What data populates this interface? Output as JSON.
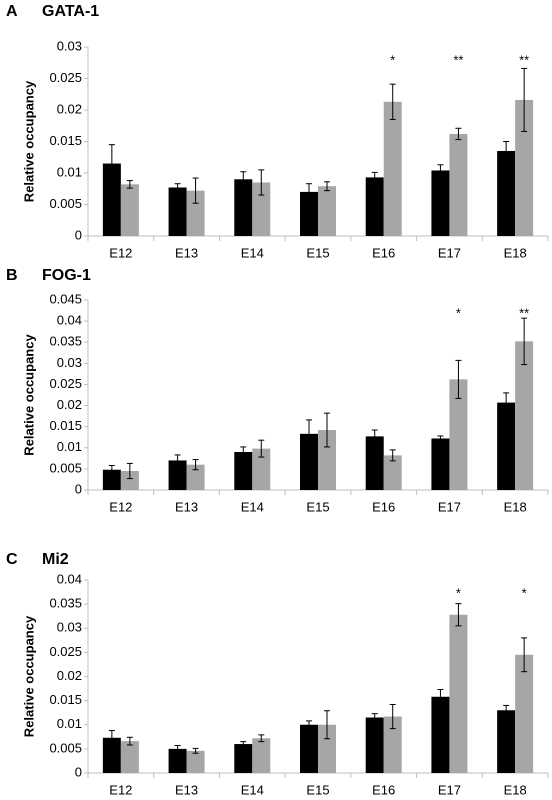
{
  "chart_data": [
    {
      "type": "bar",
      "label": "A",
      "title": "GATA-1",
      "y_label": "Relative occupancy",
      "categories": [
        "E12",
        "E13",
        "E14",
        "E15",
        "E16",
        "E17",
        "E18"
      ],
      "series": [
        {
          "color": "#000000",
          "values": [
            0.0115,
            0.0077,
            0.009,
            0.007,
            0.0093,
            0.0104,
            0.0135
          ],
          "errors": [
            0.003,
            0.0006,
            0.0012,
            0.0013,
            0.0008,
            0.0009,
            0.0015
          ]
        },
        {
          "color": "#a6a6a6",
          "values": [
            0.0082,
            0.0072,
            0.0085,
            0.0079,
            0.0213,
            0.0162,
            0.0216
          ],
          "errors": [
            0.0006,
            0.002,
            0.002,
            0.0007,
            0.0028,
            0.0009,
            0.005
          ],
          "markers": [
            null,
            null,
            null,
            null,
            "*",
            "**",
            "**"
          ]
        }
      ],
      "ylim": [
        0,
        0.03
      ],
      "yticks": [
        0,
        0.005,
        0.01,
        0.015,
        0.02,
        0.025,
        0.03
      ]
    },
    {
      "type": "bar",
      "label": "B",
      "title": "FOG-1",
      "y_label": "Relative occupancy",
      "categories": [
        "E12",
        "E13",
        "E14",
        "E15",
        "E16",
        "E17",
        "E18"
      ],
      "series": [
        {
          "color": "#000000",
          "values": [
            0.0048,
            0.007,
            0.009,
            0.0133,
            0.0127,
            0.0122,
            0.0207
          ],
          "errors": [
            0.001,
            0.0013,
            0.0012,
            0.0033,
            0.0015,
            0.0006,
            0.0023
          ]
        },
        {
          "color": "#a6a6a6",
          "values": [
            0.0045,
            0.006,
            0.0098,
            0.0142,
            0.0082,
            0.0262,
            0.0352
          ],
          "errors": [
            0.0018,
            0.0012,
            0.002,
            0.004,
            0.0013,
            0.0045,
            0.0055
          ],
          "markers": [
            null,
            null,
            null,
            null,
            null,
            "*",
            "**"
          ]
        }
      ],
      "ylim": [
        0,
        0.045
      ],
      "yticks": [
        0,
        0.005,
        0.01,
        0.015,
        0.02,
        0.025,
        0.03,
        0.035,
        0.04,
        0.045
      ]
    },
    {
      "type": "bar",
      "label": "C",
      "title": "Mi2",
      "y_label": "Relative occupancy",
      "categories": [
        "E12",
        "E13",
        "E14",
        "E15",
        "E16",
        "E17",
        "E18"
      ],
      "series": [
        {
          "color": "#000000",
          "values": [
            0.0073,
            0.005,
            0.006,
            0.01,
            0.0115,
            0.0158,
            0.013
          ],
          "errors": [
            0.0015,
            0.0007,
            0.0005,
            0.0008,
            0.0008,
            0.0015,
            0.001
          ]
        },
        {
          "color": "#a6a6a6",
          "values": [
            0.0066,
            0.0046,
            0.0072,
            0.01,
            0.0117,
            0.0328,
            0.0245
          ],
          "errors": [
            0.0008,
            0.0005,
            0.0007,
            0.0029,
            0.0025,
            0.0023,
            0.0035
          ],
          "markers": [
            null,
            null,
            null,
            null,
            null,
            "*",
            "*"
          ]
        }
      ],
      "ylim": [
        0,
        0.04
      ],
      "yticks": [
        0,
        0.005,
        0.01,
        0.015,
        0.02,
        0.025,
        0.03,
        0.035,
        0.04
      ]
    }
  ]
}
